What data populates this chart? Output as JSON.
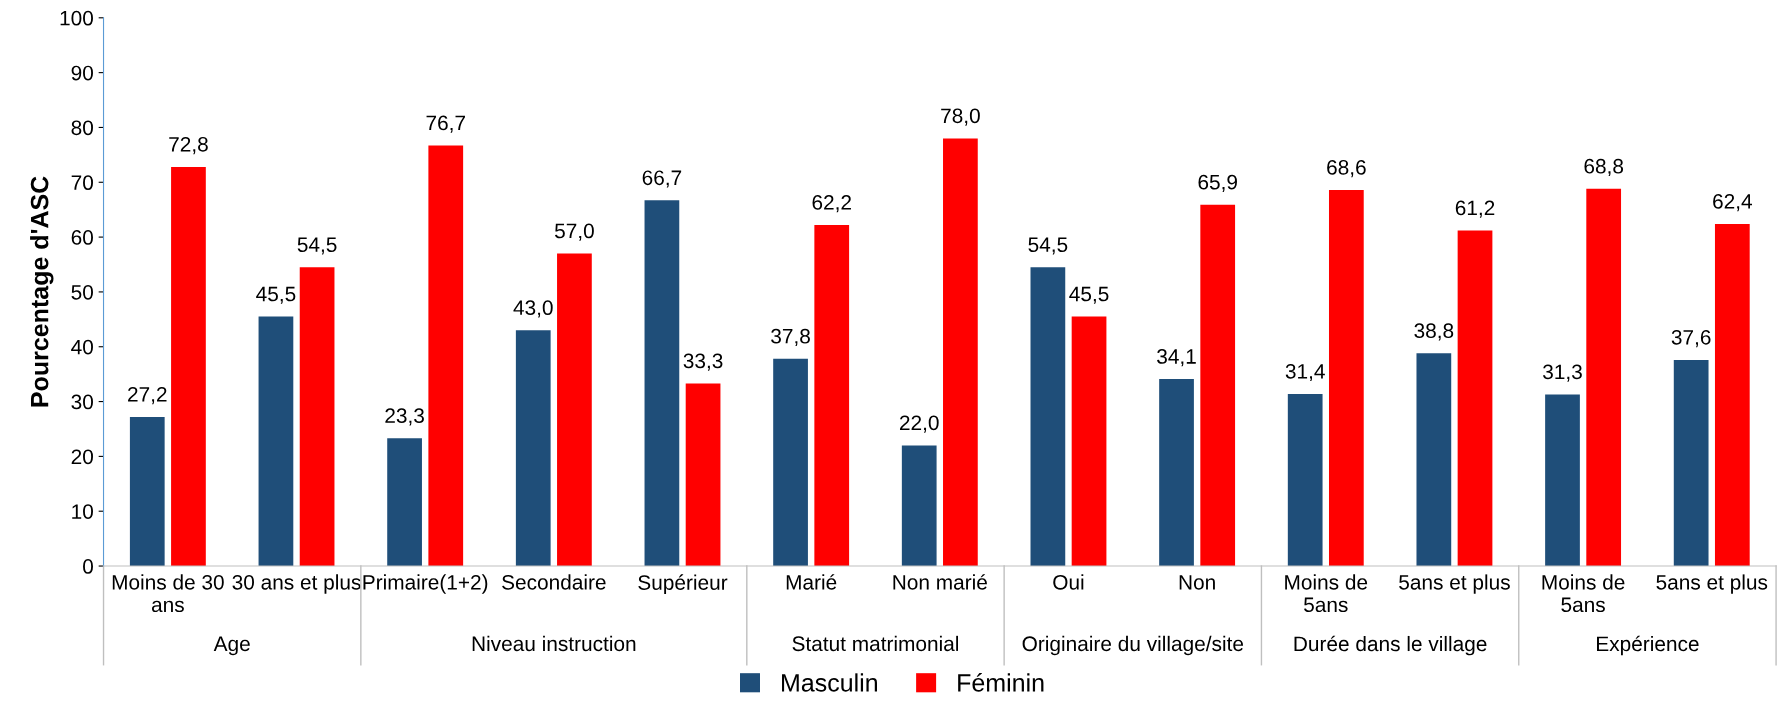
{
  "chart_data": {
    "type": "bar",
    "ylabel": "Pourcentage d'ASC",
    "categories": [
      "Moins de 30\nans",
      "30 ans et plus",
      "Primaire(1+2)",
      "Secondaire",
      "Supérieur",
      "Marié",
      "Non marié",
      "Oui",
      "Non",
      "Moins de\n5ans",
      "5ans et plus",
      "Moins de\n5ans",
      "5ans et plus"
    ],
    "series": [
      {
        "name": "Masculin",
        "color": "#1f4e79",
        "values": [
          27.2,
          45.5,
          23.3,
          43.0,
          66.7,
          37.8,
          22.0,
          54.5,
          34.1,
          31.4,
          38.8,
          31.3,
          37.6
        ],
        "value_labels": [
          "27,2",
          "45,5",
          "23,3",
          "43,0",
          "66,7",
          "37,8",
          "22,0",
          "54,5",
          "34,1",
          "31,4",
          "38,8",
          "31,3",
          "37,6"
        ]
      },
      {
        "name": "Féminin",
        "color": "#ff0000",
        "values": [
          72.8,
          54.5,
          76.7,
          57.0,
          33.3,
          62.2,
          78.0,
          45.5,
          65.9,
          68.6,
          61.2,
          68.8,
          62.4
        ],
        "value_labels": [
          "72,8",
          "54,5",
          "76,7",
          "57,0",
          "33,3",
          "62,2",
          "78,0",
          "45,5",
          "65,9",
          "68,6",
          "61,2",
          "68,8",
          "62,4"
        ]
      }
    ],
    "annotations": [
      "Age",
      "Niveau instruction",
      "Statut matrimonial",
      "Originaire du village/site",
      "Durée dans le village",
      "Expérience"
    ],
    "ylim": [
      0,
      100
    ],
    "yticks": [
      0,
      10,
      20,
      30,
      40,
      50,
      60,
      70,
      80,
      90,
      100
    ],
    "grid": false,
    "legend": "bottom"
  }
}
